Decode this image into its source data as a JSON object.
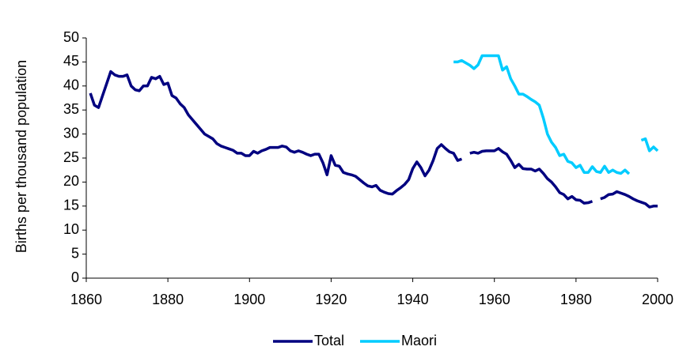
{
  "chart_data": {
    "type": "line",
    "y_label": "Births per thousand population",
    "x": [
      1861,
      1862,
      1863,
      1864,
      1865,
      1866,
      1867,
      1868,
      1869,
      1870,
      1871,
      1872,
      1873,
      1874,
      1875,
      1876,
      1877,
      1878,
      1879,
      1880,
      1881,
      1882,
      1883,
      1884,
      1885,
      1886,
      1887,
      1888,
      1889,
      1890,
      1891,
      1892,
      1893,
      1894,
      1895,
      1896,
      1897,
      1898,
      1899,
      1900,
      1901,
      1902,
      1903,
      1904,
      1905,
      1906,
      1907,
      1908,
      1909,
      1910,
      1911,
      1912,
      1913,
      1914,
      1915,
      1916,
      1917,
      1918,
      1919,
      1920,
      1921,
      1922,
      1923,
      1924,
      1925,
      1926,
      1927,
      1928,
      1929,
      1930,
      1931,
      1932,
      1933,
      1934,
      1935,
      1936,
      1937,
      1938,
      1939,
      1940,
      1941,
      1942,
      1943,
      1944,
      1945,
      1946,
      1947,
      1948,
      1949,
      1950,
      1951,
      1952,
      1953,
      1954,
      1955,
      1956,
      1957,
      1958,
      1959,
      1960,
      1961,
      1962,
      1963,
      1964,
      1965,
      1966,
      1967,
      1968,
      1969,
      1970,
      1971,
      1972,
      1973,
      1974,
      1975,
      1976,
      1977,
      1978,
      1979,
      1980,
      1981,
      1982,
      1983,
      1984,
      1985,
      1986,
      1987,
      1988,
      1989,
      1990,
      1991,
      1992,
      1993,
      1994,
      1995,
      1996,
      1997,
      1998,
      1999,
      2000
    ],
    "series": [
      {
        "name": "Total",
        "color": "#000080",
        "values": [
          38.5,
          36,
          35.5,
          38,
          40.5,
          43,
          42.3,
          42,
          42,
          42.3,
          40,
          39.2,
          39,
          40,
          40,
          41.8,
          41.5,
          42,
          40.3,
          40.6,
          38,
          37.5,
          36.3,
          35.5,
          34,
          33,
          32,
          31,
          30,
          29.5,
          29,
          28,
          27.5,
          27.2,
          26.9,
          26.6,
          26,
          26,
          25.5,
          25.5,
          26.4,
          26,
          26.5,
          26.8,
          27.2,
          27.2,
          27.2,
          27.5,
          27.3,
          26.5,
          26.2,
          26.5,
          26.2,
          25.8,
          25.5,
          25.8,
          25.8,
          24,
          21.5,
          25.5,
          23.5,
          23.3,
          22,
          21.7,
          21.5,
          21.2,
          20.5,
          19.8,
          19.2,
          19,
          19.3,
          18.3,
          17.9,
          17.6,
          17.5,
          18.2,
          18.8,
          19.5,
          20.5,
          22.8,
          24.2,
          23,
          21.3,
          22.5,
          24.5,
          27,
          27.8,
          27,
          26.3,
          26,
          24.5,
          24.8,
          null,
          26,
          26.2,
          26,
          26.4,
          26.5,
          26.5,
          26.5,
          27,
          26.3,
          25.8,
          24.5,
          23,
          23.7,
          22.8,
          22.7,
          22.7,
          22.3,
          22.7,
          21.8,
          20.7,
          20,
          19,
          17.8,
          17.4,
          16.5,
          17,
          16.3,
          16.2,
          15.6,
          15.7,
          16,
          null,
          16.5,
          16.8,
          17.4,
          17.5,
          18,
          17.7,
          17.4,
          17,
          16.5,
          16.1,
          15.8,
          15.5,
          14.8,
          15,
          15
        ]
      },
      {
        "name": "Maori",
        "color": "#00ccff",
        "values": [
          null,
          null,
          null,
          null,
          null,
          null,
          null,
          null,
          null,
          null,
          null,
          null,
          null,
          null,
          null,
          null,
          null,
          null,
          null,
          null,
          null,
          null,
          null,
          null,
          null,
          null,
          null,
          null,
          null,
          null,
          null,
          null,
          null,
          null,
          null,
          null,
          null,
          null,
          null,
          null,
          null,
          null,
          null,
          null,
          null,
          null,
          null,
          null,
          null,
          null,
          null,
          null,
          null,
          null,
          null,
          null,
          null,
          null,
          null,
          null,
          null,
          null,
          null,
          null,
          null,
          null,
          null,
          null,
          null,
          null,
          null,
          null,
          null,
          null,
          null,
          null,
          null,
          null,
          null,
          null,
          null,
          null,
          null,
          null,
          null,
          null,
          null,
          null,
          null,
          45,
          45,
          45.3,
          44.8,
          44.3,
          43.6,
          44.4,
          46.3,
          46.3,
          46.3,
          46.3,
          46.3,
          43.3,
          44,
          41.5,
          40,
          38.3,
          38.3,
          37.8,
          37.2,
          36.7,
          36,
          33.3,
          30,
          28.3,
          27.2,
          25.5,
          25.8,
          24.3,
          24,
          23,
          23.5,
          22,
          22,
          23.2,
          22.2,
          22,
          23.3,
          22,
          22.5,
          22,
          21.8,
          22.5,
          21.7,
          null,
          null,
          28.7,
          29,
          26.5,
          27.3,
          26.5
        ]
      }
    ],
    "xlim": [
      1860,
      2000
    ],
    "xticks": [
      1860,
      1880,
      1900,
      1920,
      1940,
      1960,
      1980,
      2000
    ],
    "ylim": [
      0,
      50
    ],
    "yticks": [
      0,
      5,
      10,
      15,
      20,
      25,
      30,
      35,
      40,
      45,
      50
    ],
    "grid": false,
    "legend": "bottom"
  }
}
